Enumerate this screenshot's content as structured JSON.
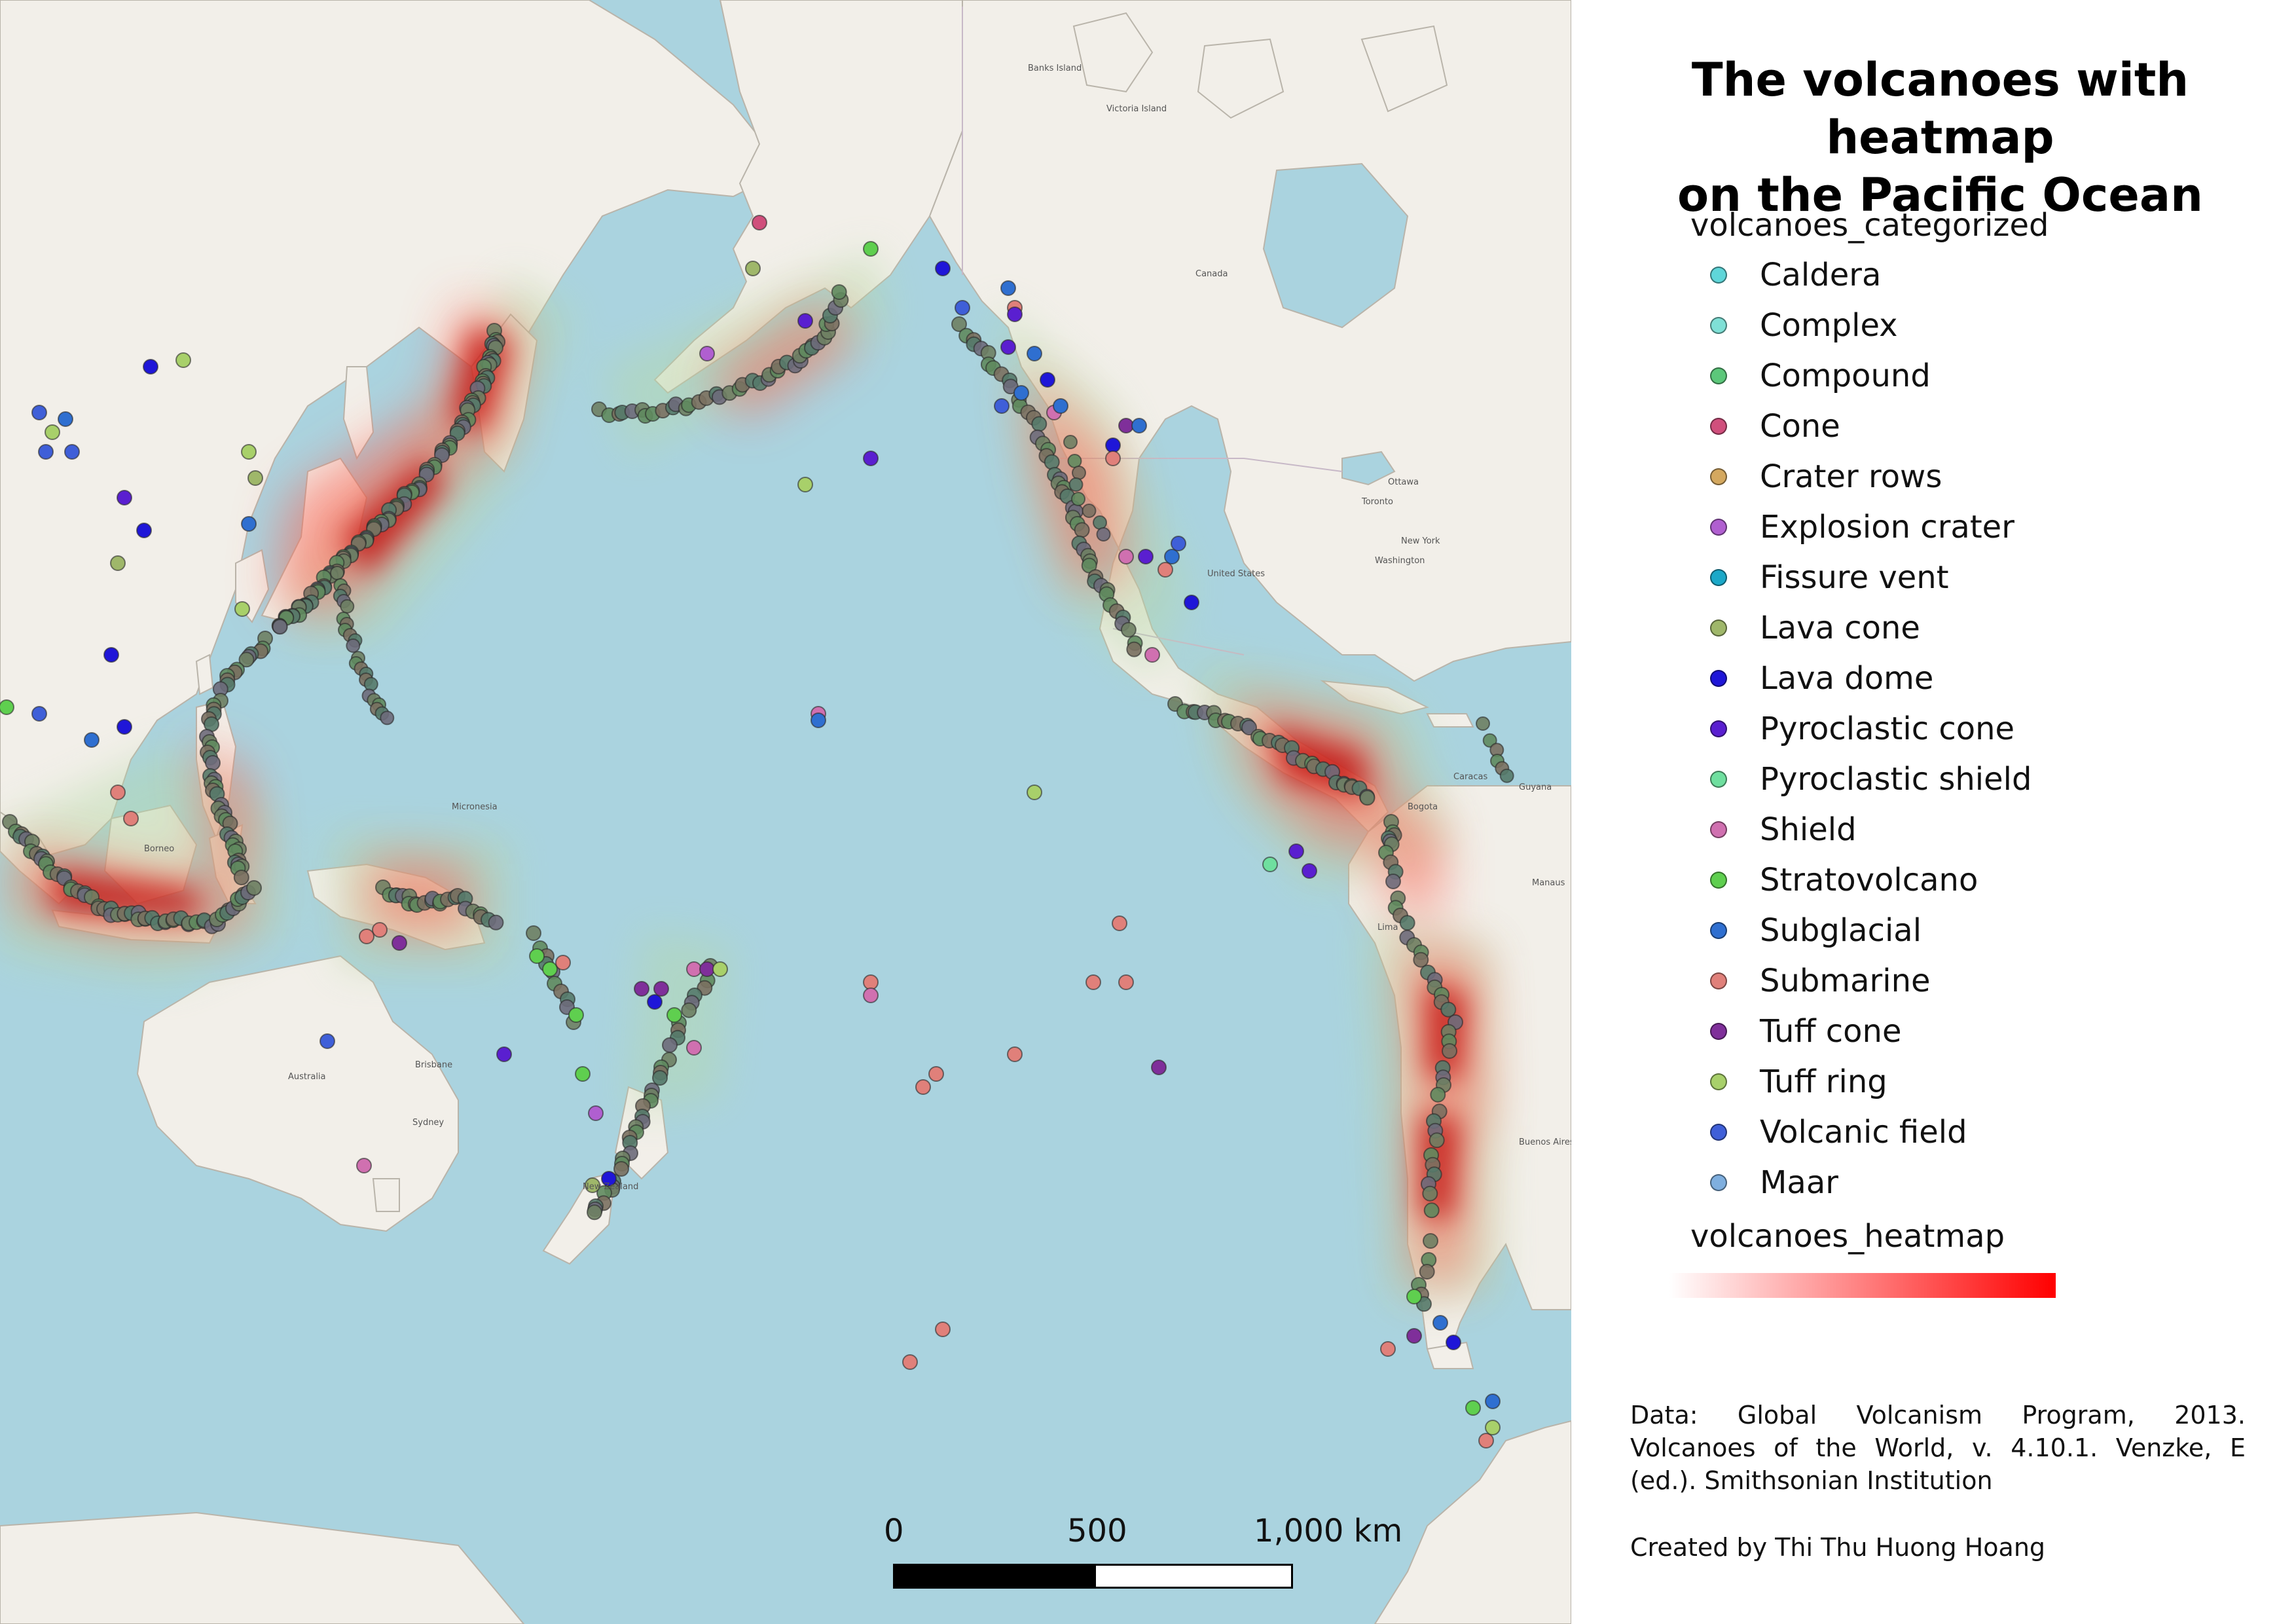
{
  "title": {
    "line1": "The volcanoes with heatmap",
    "line2": "on the Pacific Ocean"
  },
  "legend": {
    "categorized_heading": "volcanoes_categorized",
    "items": [
      {
        "label": "Caldera",
        "color": "#5fd6d9"
      },
      {
        "label": "Complex",
        "color": "#7fe0d6"
      },
      {
        "label": "Compound",
        "color": "#5cc77a"
      },
      {
        "label": "Cone",
        "color": "#d04f7c"
      },
      {
        "label": "Crater rows",
        "color": "#d4a85f"
      },
      {
        "label": "Explosion crater",
        "color": "#b05fd0"
      },
      {
        "label": "Fissure vent",
        "color": "#1ba8c8"
      },
      {
        "label": "Lava cone",
        "color": "#9fb76a"
      },
      {
        "label": "Lava dome",
        "color": "#1f16d8"
      },
      {
        "label": "Pyroclastic cone",
        "color": "#5a1fd0"
      },
      {
        "label": "Pyroclastic shield",
        "color": "#6fdf9f"
      },
      {
        "label": "Shield",
        "color": "#d070b0"
      },
      {
        "label": "Stratovolcano",
        "color": "#5fcf4f"
      },
      {
        "label": "Subglacial",
        "color": "#2f6fd0"
      },
      {
        "label": "Submarine",
        "color": "#e0807a"
      },
      {
        "label": "Tuff cone",
        "color": "#7f2f9a"
      },
      {
        "label": "Tuff ring",
        "color": "#a8d06a"
      },
      {
        "label": "Volcanic field",
        "color": "#3f5fd8"
      },
      {
        "label": "Maar",
        "color": "#7fafdf"
      }
    ],
    "heatmap_heading": "volcanoes_heatmap",
    "heatmap_colors": [
      "#ffffff",
      "#ff0000"
    ]
  },
  "credits": {
    "data_source": "Data: Global Volcanism Program, 2013. Volcanoes of the World, v. 4.10.1. Venzke, E (ed.). Smithsonian Institution",
    "author": "Created by Thi Thu Huong Hoang"
  },
  "scalebar": {
    "labels": [
      "0",
      "500",
      "1,000 km"
    ]
  },
  "map": {
    "ocean_color": "#aad3df",
    "land_color": "#f2efe9",
    "place_labels": [
      "Canada",
      "United States",
      "Australia",
      "Ottawa",
      "Toronto",
      "New York",
      "Washington",
      "Brisbane",
      "Sydney",
      "Caracas",
      "Manaus",
      "Buenos Aires",
      "Lima",
      "Bogota",
      "Guyana",
      "Victoria Island",
      "Banks Island",
      "Micronesia",
      "Borneo",
      "New Zealand"
    ]
  }
}
